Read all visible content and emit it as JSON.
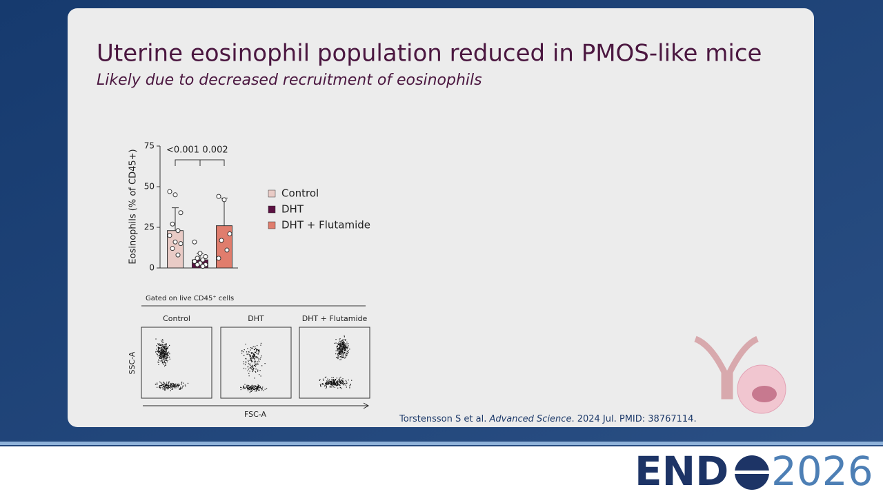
{
  "slide": {
    "title": "Uterine eosinophil population reduced in PMOS-like mice",
    "subtitle": "Likely due to decreased recruitment of eosinophils",
    "citation": {
      "authors": "Torstensson S et al. ",
      "journal": "Advanced Science",
      "rest": ". 2024 Jul. PMID: 38767114."
    },
    "logo": {
      "left": "END",
      "right": "2026"
    }
  },
  "flow": {
    "gate": "Gated on live CD45⁺ cells",
    "panels": [
      "Control",
      "DHT",
      "DHT + Flutamide"
    ],
    "ylabel": "SSC-A",
    "xlabel": "FSC-A"
  },
  "chart_data": {
    "type": "bar",
    "ylabel": "Eosinophils (% of CD45+)",
    "ylim": [
      0,
      75
    ],
    "yticks": [
      0,
      25,
      50,
      75
    ],
    "annotations": [
      "<0.001",
      "0.002"
    ],
    "series": [
      {
        "name": "Control",
        "color": "#e9cbc6",
        "values": [
          23
        ],
        "errors": [
          14
        ],
        "points": [
          47,
          45,
          34,
          27,
          23,
          20,
          16,
          15,
          12,
          8
        ]
      },
      {
        "name": "DHT",
        "color": "#5b1142",
        "values": [
          5
        ],
        "errors": [
          4
        ],
        "points": [
          16,
          9,
          7,
          6,
          5,
          4,
          3,
          2,
          2,
          1
        ]
      },
      {
        "name": "DHT + Flutamide",
        "color": "#e07d6d",
        "values": [
          26
        ],
        "errors": [
          17
        ],
        "points": [
          44,
          42,
          21,
          17,
          11,
          6
        ]
      }
    ]
  }
}
